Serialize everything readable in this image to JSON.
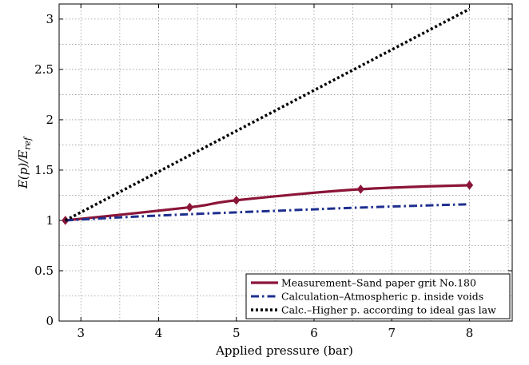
{
  "chart_data": {
    "type": "line",
    "xlabel": "Applied pressure (bar)",
    "ylabel": "E(p)/E",
    "ylabel_subscript": "ref",
    "xlim": [
      2.72,
      8.55
    ],
    "ylim": [
      0,
      3.15
    ],
    "xticks": [
      3,
      4,
      5,
      6,
      7,
      8
    ],
    "yticks": [
      0,
      0.5,
      1,
      1.5,
      2,
      2.5,
      3
    ],
    "ytick_labels": [
      "0",
      "0.5",
      "1",
      "1.5",
      "2",
      "2.5",
      "3"
    ],
    "grid": true,
    "legend_position": "bottom-right",
    "series": [
      {
        "name": "Measurement–Sand paper grit No.180",
        "color": "#8B1538",
        "style": "solid",
        "marker": "diamond",
        "x": [
          2.8,
          4.4,
          5.0,
          6.6,
          8.0
        ],
        "y": [
          1.0,
          1.13,
          1.2,
          1.31,
          1.35
        ]
      },
      {
        "name": "Calculation–Atmospheric p. inside voids",
        "color": "#1F2F8F",
        "style": "dashdot",
        "marker": "none",
        "x": [
          2.8,
          3.5,
          4.5,
          5.5,
          6.5,
          7.5,
          8.0
        ],
        "y": [
          1.0,
          1.03,
          1.065,
          1.095,
          1.125,
          1.15,
          1.16
        ]
      },
      {
        "name": "Calc.–Higher p. according to ideal gas law",
        "color": "#000000",
        "style": "dotted",
        "marker": "none",
        "x": [
          2.8,
          8.0
        ],
        "y": [
          1.0,
          3.1
        ]
      }
    ]
  }
}
